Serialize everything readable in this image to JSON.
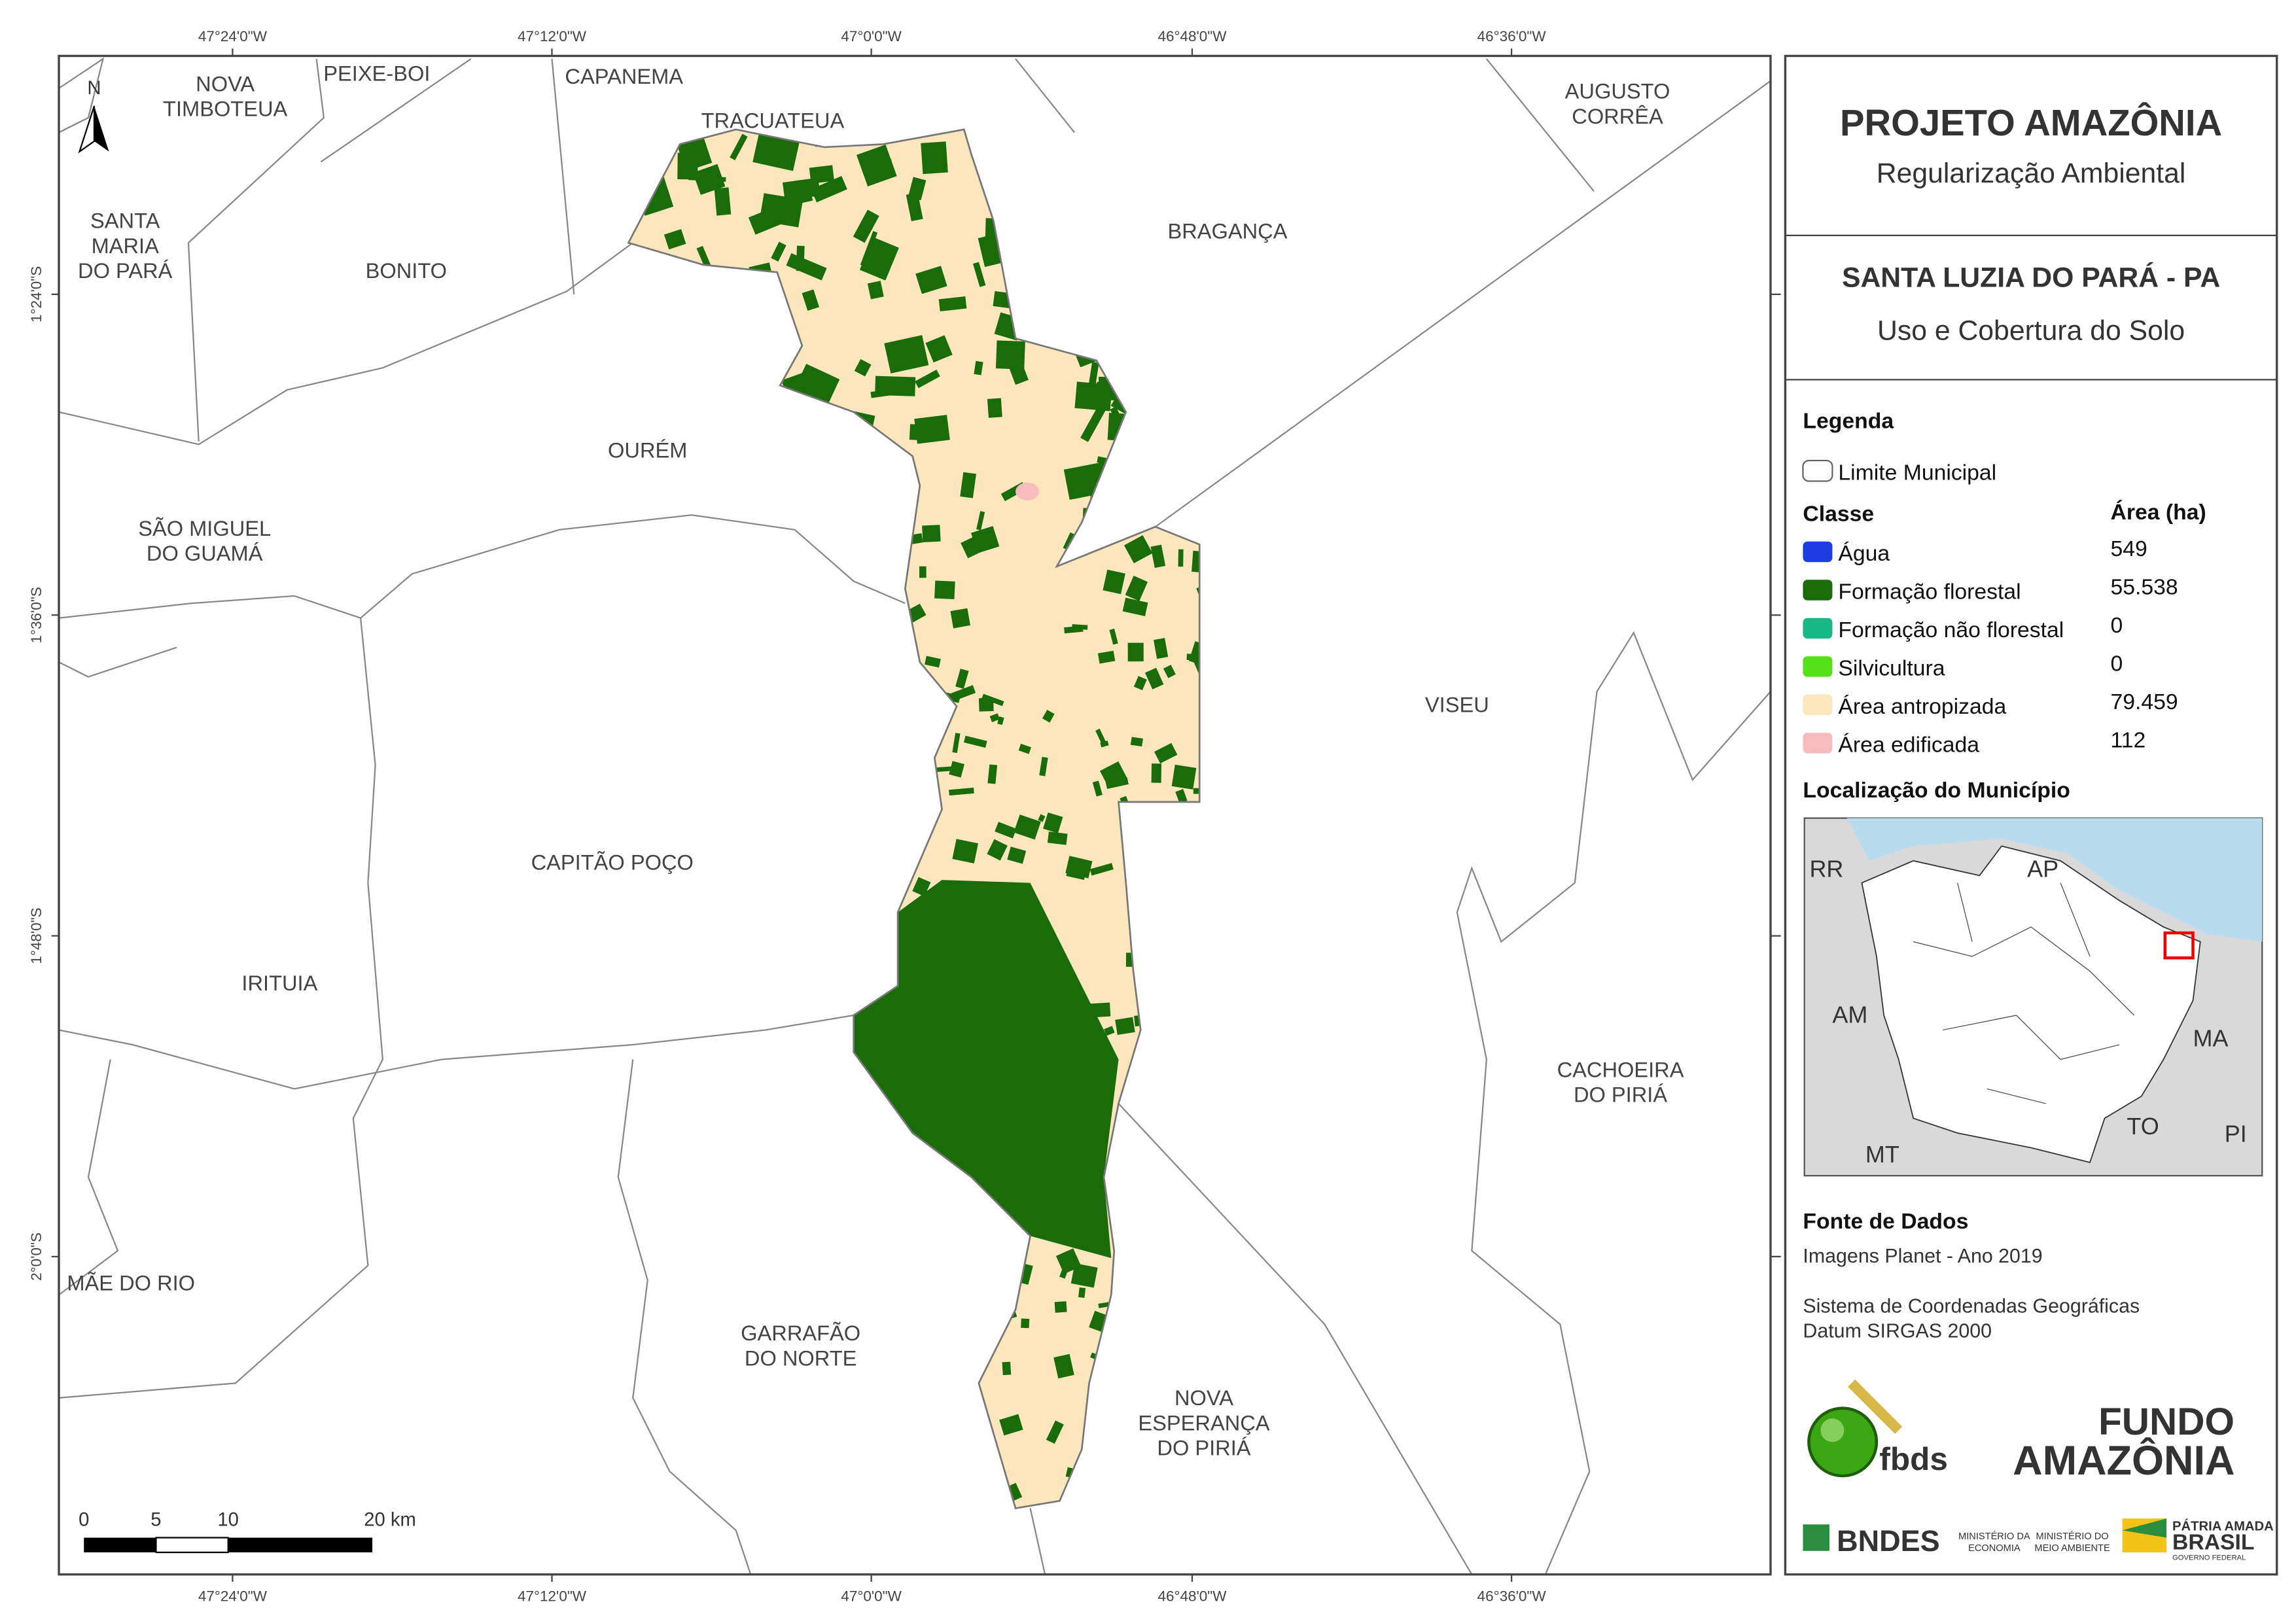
{
  "header": {
    "title": "PROJETO AMAZÔNIA",
    "subtitle": "Regularização Ambiental"
  },
  "map_title": {
    "title": "SANTA LUZIA DO PARÁ - PA",
    "subtitle": "Uso e Cobertura do Solo"
  },
  "coordinates": {
    "longitudes": [
      "47°24'0\"W",
      "47°12'0\"W",
      "47°0'0\"W",
      "46°48'0\"W",
      "46°36'0\"W"
    ],
    "latitudes": [
      "1°24'0\"S",
      "1°36'0\"S",
      "1°48'0\"S",
      "2°0'0\"S"
    ]
  },
  "north": "N",
  "places": [
    {
      "lines": [
        "NOVA",
        "TIMBOTEUA"
      ]
    },
    {
      "lines": [
        "PEIXE-BOI"
      ]
    },
    {
      "lines": [
        "CAPANEMA"
      ]
    },
    {
      "lines": [
        "TRACUATEUA"
      ]
    },
    {
      "lines": [
        "AUGUSTO",
        "CORRÊA"
      ]
    },
    {
      "lines": [
        "SANTA",
        "MARIA",
        "DO PARÁ"
      ]
    },
    {
      "lines": [
        "BONITO"
      ]
    },
    {
      "lines": [
        "BRAGANÇA"
      ]
    },
    {
      "lines": [
        "OURÉM"
      ]
    },
    {
      "lines": [
        "SÃO MIGUEL",
        "DO GUAMÁ"
      ]
    },
    {
      "lines": [
        "VISEU"
      ]
    },
    {
      "lines": [
        "CAPITÃO POÇO"
      ]
    },
    {
      "lines": [
        "IRITUIA"
      ]
    },
    {
      "lines": [
        "CACHOEIRA",
        "DO PIRIÁ"
      ]
    },
    {
      "lines": [
        "MÃE DO RIO"
      ]
    },
    {
      "lines": [
        "GARRAFÃO",
        "DO NORTE"
      ]
    },
    {
      "lines": [
        "NOVA",
        "ESPERANÇA",
        "DO PIRIÁ"
      ]
    }
  ],
  "scale_bar": [
    "0",
    "5",
    "10",
    "20 km"
  ],
  "legend": {
    "title": "Legenda",
    "boundary": "Limite Municipal",
    "class_header": "Classe",
    "area_header": "Área (ha)",
    "classes": [
      {
        "name": "Água",
        "area": "549",
        "color": "#1d3ce6"
      },
      {
        "name": "Formação florestal",
        "area": "55.538",
        "color": "#1a6b0a"
      },
      {
        "name": "Formação não florestal",
        "area": "0",
        "color": "#16b884"
      },
      {
        "name": "Silvicultura",
        "area": "0",
        "color": "#55e01a"
      },
      {
        "name": "Área antropizada",
        "area": "79.459",
        "color": "#fbe6bd"
      },
      {
        "name": "Área edificada",
        "area": "112",
        "color": "#f7bcbc"
      }
    ]
  },
  "location": {
    "title": "Localização do Município",
    "states": [
      "RR",
      "AP",
      "AM",
      "MA",
      "MT",
      "TO",
      "PI"
    ]
  },
  "sources": {
    "title": "Fonte de Dados",
    "lines": [
      "Imagens Planet - Ano 2019",
      "Sistema de Coordenadas Geográficas",
      "Datum SIRGAS 2000"
    ]
  },
  "logos": {
    "fbds": "fbds",
    "fundo": [
      "FUNDO",
      "AMAZÔNIA"
    ],
    "bndes": "BNDES",
    "economia": [
      "MINISTÉRIO DA",
      "ECONOMIA"
    ],
    "meio_ambiente": [
      "MINISTÉRIO DO",
      "MEIO AMBIENTE"
    ],
    "brasil": [
      "PÁTRIA AMADA",
      "BRASIL",
      "GOVERNO FEDERAL"
    ]
  }
}
